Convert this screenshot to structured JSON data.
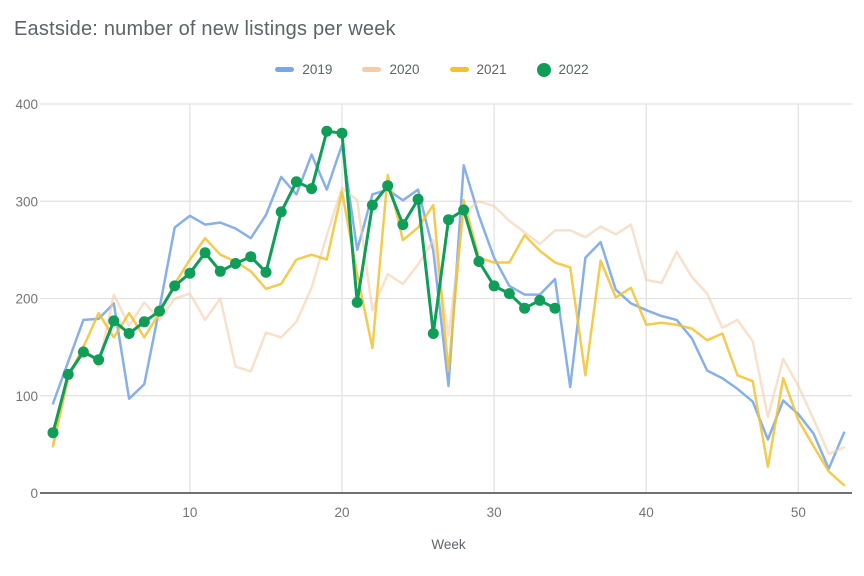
{
  "title": "Eastside: number of new listings per week",
  "axes": {
    "x_label": "Week",
    "x_tick_labels": [
      "10",
      "20",
      "30",
      "40",
      "50"
    ],
    "y_tick_labels": [
      "0",
      "100",
      "200",
      "300",
      "400"
    ]
  },
  "colors": {
    "title_text": "#5f6368",
    "axis_text": "#757575",
    "grid_line": "#e3e3e3",
    "baseline": "#424242",
    "series_2019": "#7aa7e8",
    "series_2020": "#f3cda9",
    "series_2021": "#f1c232",
    "series_2022": "#0f9d58"
  },
  "chart_data": {
    "type": "line",
    "title": "Eastside: number of new listings per week",
    "xlabel": "Week",
    "ylabel": "",
    "x_range": [
      1,
      53
    ],
    "ylim": [
      0,
      400
    ],
    "x_ticks": [
      10,
      20,
      30,
      40,
      50
    ],
    "y_ticks": [
      0,
      100,
      200,
      300,
      400
    ],
    "grid": true,
    "legend_position": "top",
    "x_unit": "week_number",
    "series": [
      {
        "name": "2019",
        "color": "#7aa7e8",
        "opacity": 0.9,
        "style": "line",
        "values": [
          92,
          135,
          178,
          179,
          195,
          97,
          112,
          190,
          273,
          285,
          276,
          278,
          272,
          262,
          286,
          325,
          307,
          348,
          312,
          358,
          250,
          307,
          312,
          301,
          312,
          249,
          110,
          337,
          285,
          242,
          213,
          204,
          204,
          220,
          109,
          242,
          258,
          209,
          195,
          188,
          182,
          178,
          159,
          126,
          118,
          107,
          94,
          55,
          95,
          81,
          61,
          25,
          62
        ]
      },
      {
        "name": "2020",
        "color": "#f3cda9",
        "opacity": 0.6,
        "style": "line",
        "values": [
          50,
          115,
          152,
          130,
          204,
          172,
          196,
          178,
          200,
          205,
          178,
          200,
          130,
          125,
          165,
          160,
          176,
          211,
          265,
          314,
          301,
          188,
          225,
          215,
          235,
          260,
          162,
          288,
          300,
          295,
          280,
          268,
          256,
          270,
          270,
          263,
          274,
          266,
          276,
          219,
          216,
          248,
          222,
          205,
          170,
          178,
          156,
          78,
          138,
          110,
          76,
          40,
          47
        ]
      },
      {
        "name": "2021",
        "color": "#f1c232",
        "opacity": 0.85,
        "style": "line",
        "values": [
          48,
          120,
          150,
          185,
          160,
          185,
          160,
          185,
          215,
          240,
          262,
          245,
          238,
          228,
          210,
          215,
          240,
          245,
          240,
          310,
          225,
          149,
          327,
          260,
          273,
          296,
          125,
          301,
          242,
          237,
          237,
          265,
          249,
          237,
          232,
          121,
          239,
          201,
          211,
          173,
          175,
          173,
          169,
          157,
          164,
          121,
          115,
          27,
          118,
          75,
          48,
          22,
          8
        ]
      },
      {
        "name": "2022",
        "color": "#0f9d58",
        "opacity": 1,
        "style": "line+markers",
        "values": [
          62,
          122,
          145,
          137,
          177,
          164,
          176,
          187,
          213,
          226,
          247,
          228,
          236,
          243,
          227,
          289,
          320,
          313,
          372,
          370,
          196,
          296,
          316,
          276,
          302,
          164,
          281,
          291,
          238,
          213,
          205,
          190,
          198,
          190
        ]
      }
    ]
  }
}
